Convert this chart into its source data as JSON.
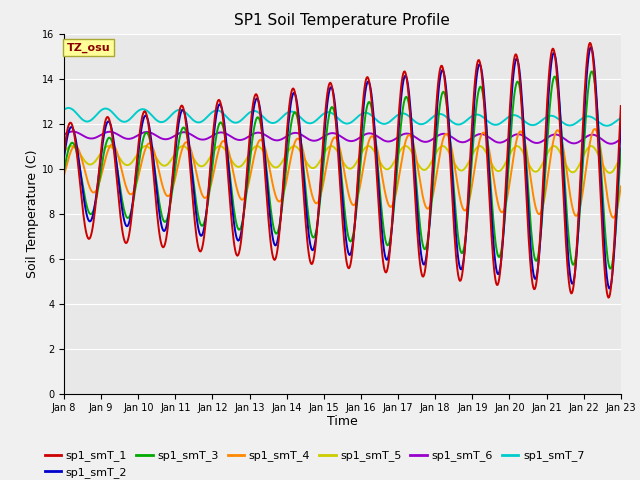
{
  "title": "SP1 Soil Temperature Profile",
  "xlabel": "Time",
  "ylabel": "Soil Temperature (C)",
  "ylim": [
    0,
    16
  ],
  "yticks": [
    0,
    2,
    4,
    6,
    8,
    10,
    12,
    14,
    16
  ],
  "tz_label": "TZ_osu",
  "x_tick_labels": [
    "Jan 8",
    "Jan 9",
    "Jan 10",
    "Jan 11",
    "Jan 12",
    "Jan 13",
    "Jan 14",
    "Jan 15",
    "Jan 16",
    "Jan 17",
    "Jan 18",
    "Jan 19",
    "Jan 20",
    "Jan 21",
    "Jan 22",
    "Jan 23"
  ],
  "series_colors": {
    "sp1_smT_1": "#cc0000",
    "sp1_smT_2": "#0000cc",
    "sp1_smT_3": "#00aa00",
    "sp1_smT_4": "#ff8800",
    "sp1_smT_5": "#cccc00",
    "sp1_smT_6": "#9900cc",
    "sp1_smT_7": "#00cccc"
  },
  "legend_order": [
    "sp1_smT_1",
    "sp1_smT_2",
    "sp1_smT_3",
    "sp1_smT_4",
    "sp1_smT_5",
    "sp1_smT_6",
    "sp1_smT_7"
  ],
  "bg_color": "#e8e8e8",
  "fig_bg": "#f0f0f0",
  "grid_color": "#ffffff",
  "title_fontsize": 11,
  "tick_fontsize": 7,
  "axis_label_fontsize": 9,
  "legend_fontsize": 8,
  "lw": 1.4
}
